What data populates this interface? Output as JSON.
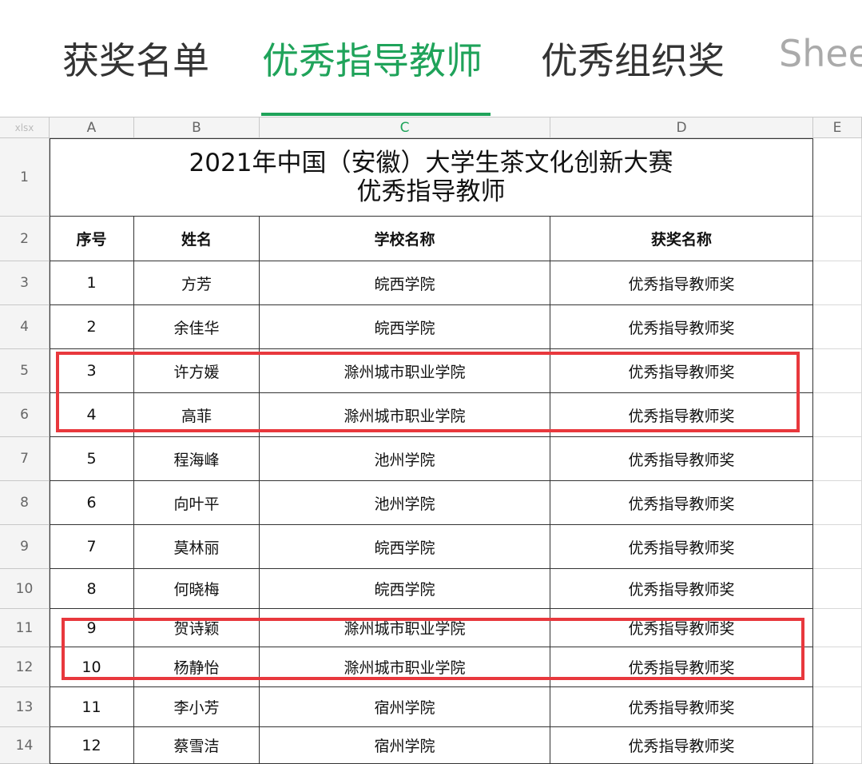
{
  "tabs": [
    "获奖名单",
    "优秀指导教师",
    "优秀组织奖",
    "Shee"
  ],
  "corner": "xlsx",
  "columns": [
    "A",
    "B",
    "C",
    "D",
    "E"
  ],
  "row_numbers": [
    1,
    2,
    3,
    4,
    5,
    6,
    7,
    8,
    9,
    10,
    11,
    12,
    13,
    14
  ],
  "title": [
    "2021年中国（安徽）大学生茶文化创新大赛",
    "优秀指导教师"
  ],
  "header": [
    "序号",
    "姓名",
    "学校名称",
    "获奖名称"
  ],
  "rows": [
    [
      1,
      "方芳",
      "皖西学院",
      "优秀指导教师奖"
    ],
    [
      2,
      "余佳华",
      "皖西学院",
      "优秀指导教师奖"
    ],
    [
      3,
      "许方媛",
      "滁州城市职业学院",
      "优秀指导教师奖"
    ],
    [
      4,
      "高菲",
      "滁州城市职业学院",
      "优秀指导教师奖"
    ],
    [
      5,
      "程海峰",
      "池州学院",
      "优秀指导教师奖"
    ],
    [
      6,
      "向叶平",
      "池州学院",
      "优秀指导教师奖"
    ],
    [
      7,
      "莫林丽",
      "皖西学院",
      "优秀指导教师奖"
    ],
    [
      8,
      "何晓梅",
      "皖西学院",
      "优秀指导教师奖"
    ],
    [
      9,
      "贺诗颖",
      "滁州城市职业学院",
      "优秀指导教师奖"
    ],
    [
      10,
      "杨静怡",
      "滁州城市职业学院",
      "优秀指导教师奖"
    ],
    [
      11,
      "李小芳",
      "宿州学院",
      "优秀指导教师奖"
    ],
    [
      12,
      "蔡雪洁",
      "宿州学院",
      "优秀指导教师奖"
    ]
  ]
}
